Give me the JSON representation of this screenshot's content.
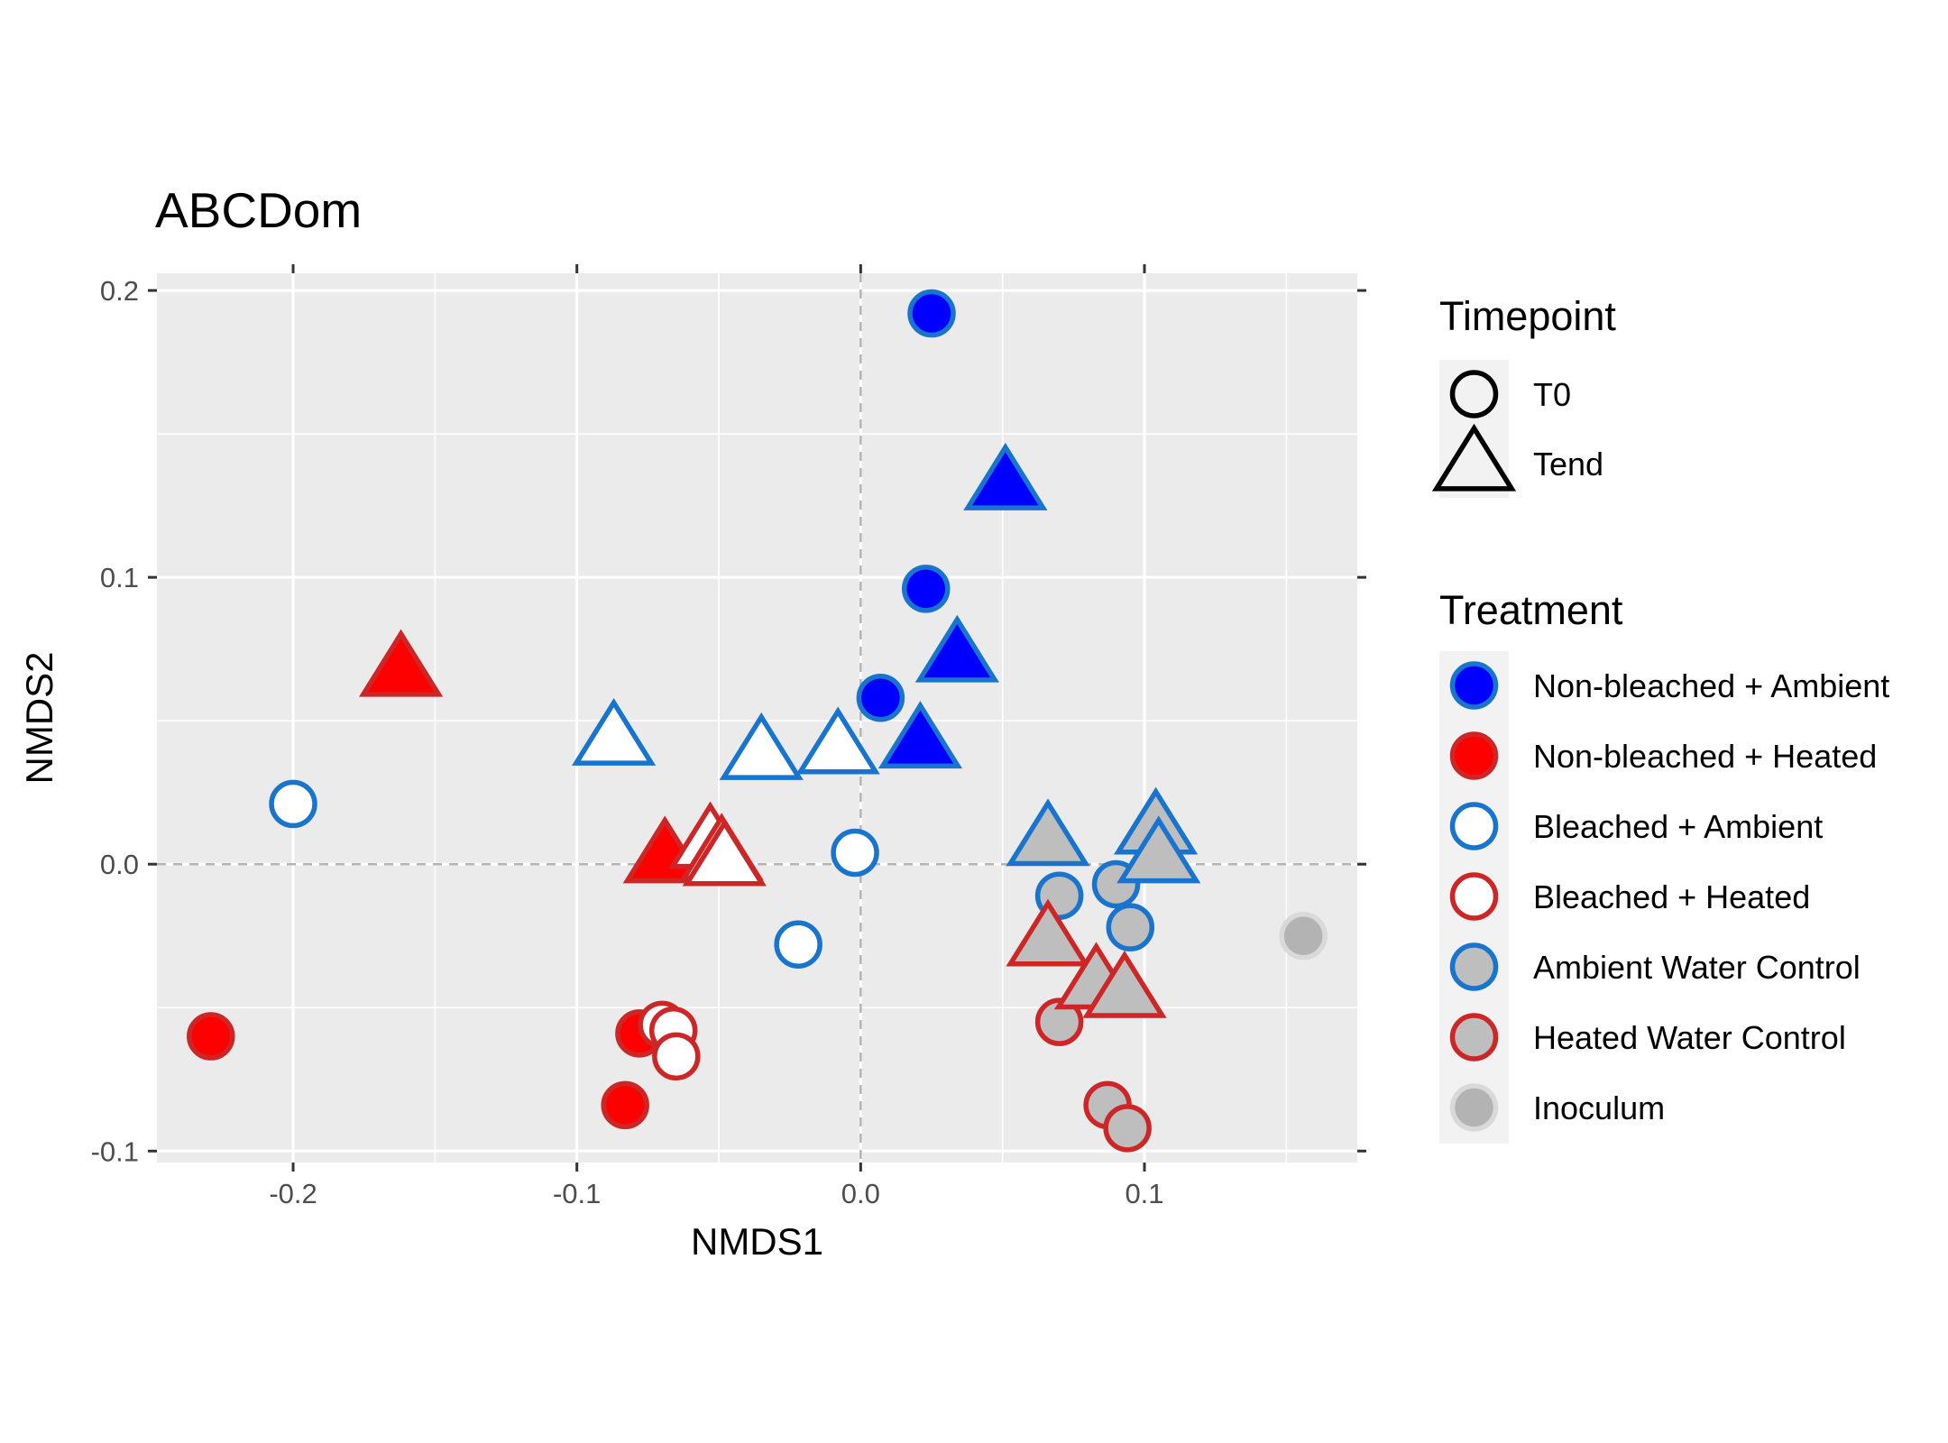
{
  "chart_data": {
    "type": "scatter",
    "title": "ABCDom",
    "xlabel": "NMDS1",
    "ylabel": "NMDS2",
    "xlim": [
      -0.248,
      0.175
    ],
    "ylim": [
      -0.104,
      0.206
    ],
    "x_ticks": [
      -0.2,
      -0.1,
      0.0,
      0.1
    ],
    "x_tick_labels": [
      "-0.2",
      "-0.1",
      "0.0",
      "0.1"
    ],
    "y_ticks": [
      -0.1,
      0.0,
      0.1,
      0.2
    ],
    "y_tick_labels": [
      "-0.1",
      "0.0",
      "0.1",
      "0.2"
    ],
    "zero_reference_lines": true,
    "grid": true,
    "legend_position": "right",
    "legends": {
      "timepoint": {
        "title": "Timepoint",
        "entries": [
          {
            "label": "T0",
            "shape": "circle"
          },
          {
            "label": "Tend",
            "shape": "triangle"
          }
        ]
      },
      "treatment": {
        "title": "Treatment",
        "entries": [
          {
            "label": "Non-bleached + Ambient",
            "key": "nba"
          },
          {
            "label": "Non-bleached + Heated",
            "key": "nbh"
          },
          {
            "label": "Bleached + Ambient",
            "key": "ba"
          },
          {
            "label": "Bleached + Heated",
            "key": "bh"
          },
          {
            "label": "Ambient Water Control",
            "key": "awc"
          },
          {
            "label": "Heated Water Control",
            "key": "hwc"
          },
          {
            "label": "Inoculum",
            "key": "ino"
          }
        ]
      }
    },
    "styles": {
      "nba": {
        "fill": "#0000FF",
        "stroke": "#1874CD"
      },
      "nbh": {
        "fill": "#FF0000",
        "stroke": "#CD2626"
      },
      "ba": {
        "fill": "#FFFFFF",
        "stroke": "#1874CD"
      },
      "bh": {
        "fill": "#FFFFFF",
        "stroke": "#CD2626"
      },
      "awc": {
        "fill": "#BEBEBE",
        "stroke": "#1874CD"
      },
      "hwc": {
        "fill": "#BEBEBE",
        "stroke": "#CD2626"
      },
      "ino": {
        "fill": "#B3B3B3",
        "stroke": "#D9D9D9"
      }
    },
    "points": [
      {
        "x": 0.025,
        "y": 0.192,
        "treatment": "nba",
        "timepoint": "T0"
      },
      {
        "x": 0.023,
        "y": 0.096,
        "treatment": "nba",
        "timepoint": "T0"
      },
      {
        "x": 0.007,
        "y": 0.058,
        "treatment": "nba",
        "timepoint": "T0"
      },
      {
        "x": 0.051,
        "y": 0.133,
        "treatment": "nba",
        "timepoint": "Tend"
      },
      {
        "x": 0.034,
        "y": 0.073,
        "treatment": "nba",
        "timepoint": "Tend"
      },
      {
        "x": 0.021,
        "y": 0.043,
        "treatment": "nba",
        "timepoint": "Tend"
      },
      {
        "x": -0.229,
        "y": -0.06,
        "treatment": "nbh",
        "timepoint": "T0"
      },
      {
        "x": -0.078,
        "y": -0.059,
        "treatment": "nbh",
        "timepoint": "T0"
      },
      {
        "x": -0.083,
        "y": -0.084,
        "treatment": "nbh",
        "timepoint": "T0"
      },
      {
        "x": -0.162,
        "y": 0.068,
        "treatment": "nbh",
        "timepoint": "Tend"
      },
      {
        "x": -0.069,
        "y": 0.003,
        "treatment": "nbh",
        "timepoint": "Tend"
      },
      {
        "x": -0.2,
        "y": 0.021,
        "treatment": "ba",
        "timepoint": "T0"
      },
      {
        "x": -0.002,
        "y": 0.004,
        "treatment": "ba",
        "timepoint": "T0"
      },
      {
        "x": -0.022,
        "y": -0.028,
        "treatment": "ba",
        "timepoint": "T0"
      },
      {
        "x": -0.087,
        "y": 0.044,
        "treatment": "ba",
        "timepoint": "Tend"
      },
      {
        "x": -0.035,
        "y": 0.039,
        "treatment": "ba",
        "timepoint": "Tend"
      },
      {
        "x": -0.008,
        "y": 0.041,
        "treatment": "ba",
        "timepoint": "Tend"
      },
      {
        "x": -0.07,
        "y": -0.056,
        "treatment": "bh",
        "timepoint": "T0"
      },
      {
        "x": -0.066,
        "y": -0.058,
        "treatment": "bh",
        "timepoint": "T0"
      },
      {
        "x": -0.065,
        "y": -0.067,
        "treatment": "bh",
        "timepoint": "T0"
      },
      {
        "x": -0.053,
        "y": 0.008,
        "treatment": "bh",
        "timepoint": "Tend"
      },
      {
        "x": -0.049,
        "y": 0.004,
        "treatment": "bh",
        "timepoint": "Tend"
      },
      {
        "x": -0.048,
        "y": 0.002,
        "treatment": "bh",
        "timepoint": "Tend"
      },
      {
        "x": 0.07,
        "y": -0.011,
        "treatment": "awc",
        "timepoint": "T0"
      },
      {
        "x": 0.09,
        "y": -0.007,
        "treatment": "awc",
        "timepoint": "T0"
      },
      {
        "x": 0.095,
        "y": -0.022,
        "treatment": "awc",
        "timepoint": "T0"
      },
      {
        "x": 0.066,
        "y": 0.009,
        "treatment": "awc",
        "timepoint": "Tend"
      },
      {
        "x": 0.104,
        "y": 0.013,
        "treatment": "awc",
        "timepoint": "Tend"
      },
      {
        "x": 0.105,
        "y": 0.003,
        "treatment": "awc",
        "timepoint": "Tend"
      },
      {
        "x": 0.07,
        "y": -0.055,
        "treatment": "hwc",
        "timepoint": "T0"
      },
      {
        "x": 0.087,
        "y": -0.084,
        "treatment": "hwc",
        "timepoint": "T0"
      },
      {
        "x": 0.094,
        "y": -0.092,
        "treatment": "hwc",
        "timepoint": "T0"
      },
      {
        "x": 0.066,
        "y": -0.026,
        "treatment": "hwc",
        "timepoint": "Tend"
      },
      {
        "x": 0.083,
        "y": -0.041,
        "treatment": "hwc",
        "timepoint": "Tend"
      },
      {
        "x": 0.093,
        "y": -0.044,
        "treatment": "hwc",
        "timepoint": "Tend"
      },
      {
        "x": 0.156,
        "y": -0.025,
        "treatment": "ino",
        "timepoint": "T0"
      }
    ]
  }
}
